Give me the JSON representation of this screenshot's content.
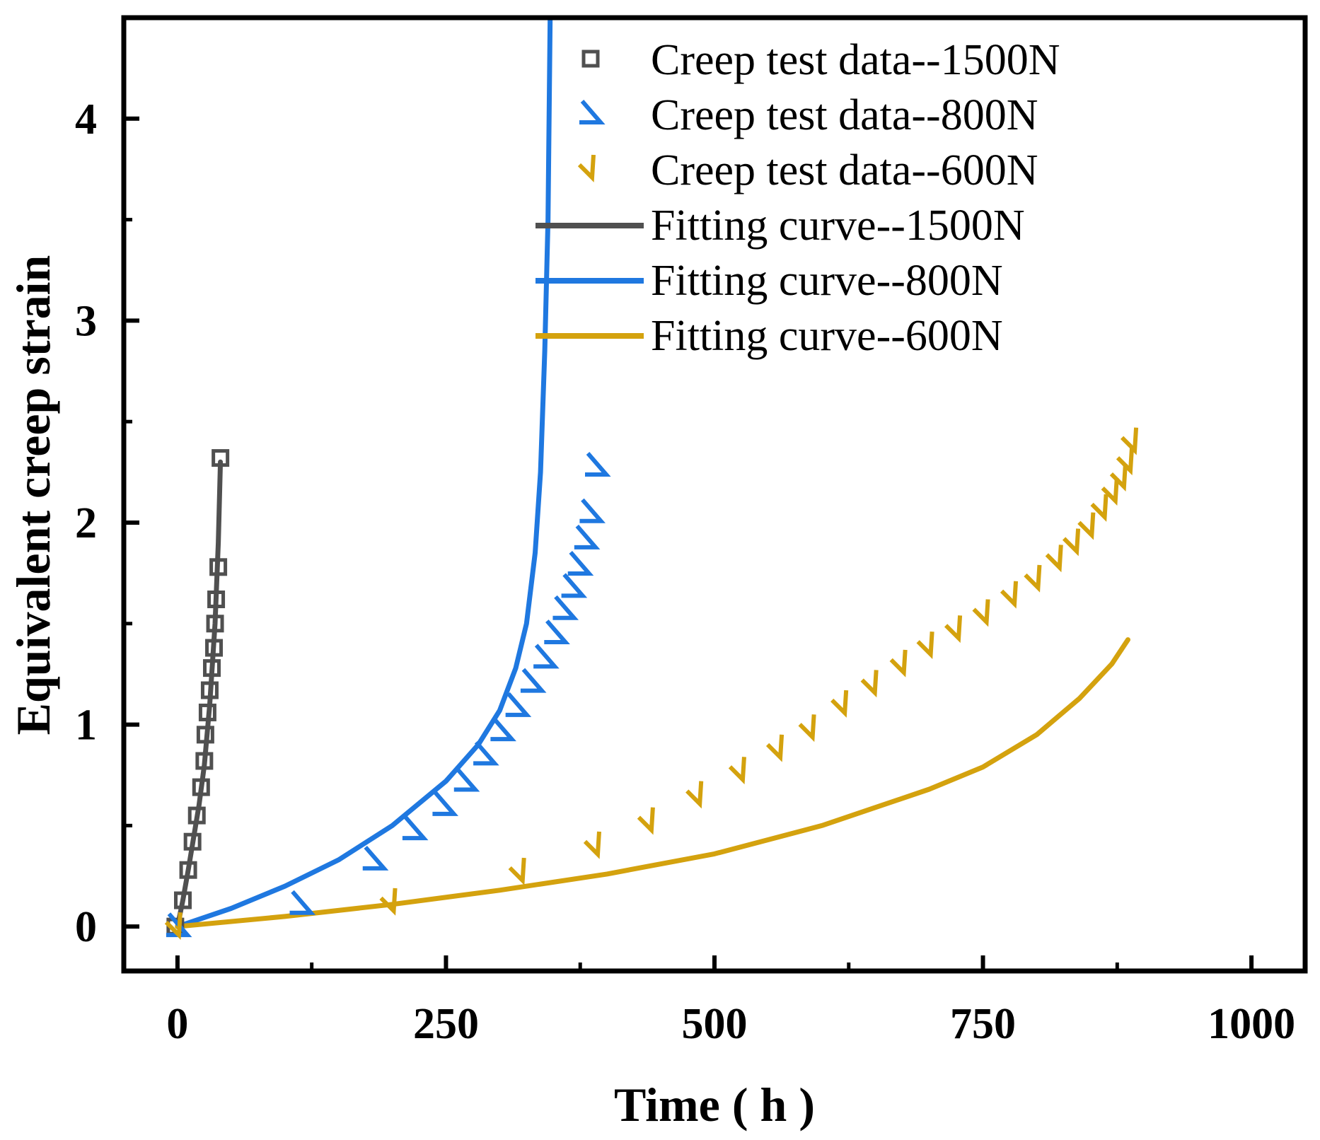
{
  "chart_data": {
    "type": "line",
    "title": "",
    "xlabel": "Time ( h )",
    "ylabel": "Equivalent creep strain",
    "xlim": [
      -50,
      1050
    ],
    "ylim": [
      -0.22,
      4.5
    ],
    "x_ticks": [
      0,
      250,
      500,
      750,
      1000
    ],
    "x_tick_labels": [
      "0",
      "250",
      "500",
      "750",
      "1000"
    ],
    "y_ticks": [
      0,
      1,
      2,
      3,
      4
    ],
    "y_tick_labels": [
      "0",
      "1",
      "2",
      "3",
      "4"
    ],
    "legend_position": "top-right",
    "series": [
      {
        "name": "Creep test data--1500N",
        "kind": "scatter",
        "marker": "square",
        "color": "#505050",
        "x": [
          -2,
          5,
          10,
          14,
          18,
          22,
          25,
          26,
          28,
          30,
          32,
          34,
          35,
          36,
          38,
          40
        ],
        "y": [
          0.0,
          0.13,
          0.28,
          0.42,
          0.55,
          0.69,
          0.82,
          0.95,
          1.06,
          1.17,
          1.28,
          1.38,
          1.5,
          1.62,
          1.78,
          2.32
        ]
      },
      {
        "name": "Creep test data--800N",
        "kind": "scatter",
        "marker": "triangle-right",
        "color": "#1f78e0",
        "x": [
          0,
          115,
          183,
          220,
          248,
          268,
          286,
          302,
          316,
          330,
          342,
          352,
          360,
          368,
          374,
          380,
          385,
          390
        ],
        "y": [
          0.0,
          0.11,
          0.33,
          0.48,
          0.6,
          0.72,
          0.85,
          0.97,
          1.09,
          1.21,
          1.33,
          1.45,
          1.57,
          1.68,
          1.79,
          1.92,
          2.05,
          2.28
        ]
      },
      {
        "name": "Creep test data--600N",
        "kind": "scatter",
        "marker": "triangle-down",
        "color": "#d4a20e",
        "x": [
          0,
          200,
          320,
          390,
          440,
          485,
          525,
          560,
          590,
          620,
          648,
          675,
          700,
          726,
          752,
          778,
          800,
          820,
          836,
          850,
          862,
          872,
          880,
          886,
          890
        ],
        "y": [
          0.0,
          0.12,
          0.27,
          0.4,
          0.52,
          0.65,
          0.77,
          0.88,
          0.98,
          1.1,
          1.2,
          1.3,
          1.39,
          1.47,
          1.55,
          1.64,
          1.72,
          1.82,
          1.9,
          1.98,
          2.07,
          2.15,
          2.22,
          2.3,
          2.4
        ]
      },
      {
        "name": "Fitting curve--1500N",
        "kind": "line",
        "color": "#505050",
        "x": [
          0,
          5,
          10,
          15,
          20,
          25,
          30,
          35,
          38,
          40
        ],
        "y": [
          0.0,
          0.13,
          0.28,
          0.44,
          0.6,
          0.8,
          1.1,
          1.5,
          1.9,
          2.3
        ]
      },
      {
        "name": "Fitting curve--800N",
        "kind": "line",
        "color": "#1f78e0",
        "x": [
          0,
          50,
          100,
          150,
          200,
          250,
          280,
          300,
          315,
          325,
          333,
          338,
          342,
          345,
          346,
          347
        ],
        "y": [
          0.0,
          0.09,
          0.2,
          0.33,
          0.5,
          0.72,
          0.9,
          1.07,
          1.28,
          1.5,
          1.85,
          2.25,
          2.85,
          3.5,
          4.0,
          4.5
        ]
      },
      {
        "name": "Fitting curve--600N",
        "kind": "line",
        "color": "#d4a20e",
        "x": [
          0,
          100,
          200,
          300,
          400,
          500,
          600,
          700,
          750,
          800,
          840,
          870,
          885
        ],
        "y": [
          0.0,
          0.05,
          0.11,
          0.18,
          0.26,
          0.36,
          0.5,
          0.68,
          0.79,
          0.95,
          1.13,
          1.3,
          1.42
        ]
      }
    ]
  }
}
